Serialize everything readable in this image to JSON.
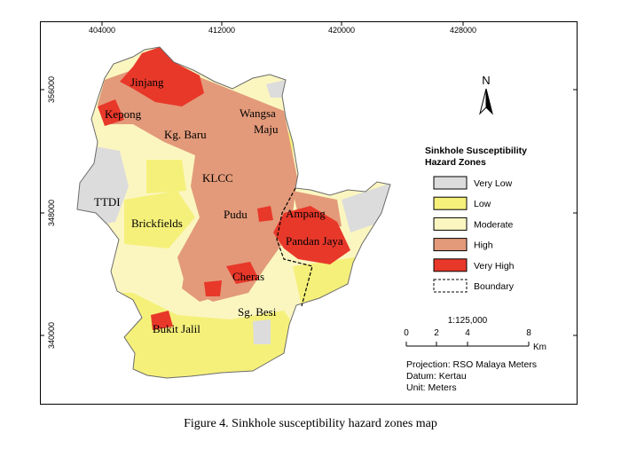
{
  "figure": {
    "caption": "Figure 4. Sinkhole susceptibility hazard zones map"
  },
  "axes": {
    "x_ticks": [
      "404000",
      "412000",
      "420000",
      "428000"
    ],
    "y_ticks": [
      "356000",
      "348000",
      "340000"
    ]
  },
  "places": [
    "Jinjang",
    "Kepong",
    "Wangsa",
    "Maju",
    "Kg. Baru",
    "KLCC",
    "TTDI",
    "Brickfields",
    "Pudu",
    "Ampang",
    "Pandan Jaya",
    "Cheras",
    "Sg. Besi",
    "Bukit Jalil"
  ],
  "north_arrow": {
    "label": "N"
  },
  "legend": {
    "title_line1": "Sinkhole Susceptibility",
    "title_line2": "Hazard Zones",
    "items": [
      {
        "label": "Very Low",
        "color": "#dcdcdc"
      },
      {
        "label": "Low",
        "color": "#f5f07a"
      },
      {
        "label": "Moderate",
        "color": "#fbf6c0"
      },
      {
        "label": "High",
        "color": "#e39a7a"
      },
      {
        "label": "Very High",
        "color": "#e8382a"
      },
      {
        "label": "Boundary",
        "color": "#ffffff"
      }
    ]
  },
  "scale": {
    "ratio": "1:125,000",
    "ticks": [
      "0",
      "2",
      "4",
      "8"
    ],
    "unit": "Km"
  },
  "info": {
    "projection": "Projection: RSO Malaya Meters",
    "datum": "Datum: Kertau",
    "unit": "Unit: Meters"
  }
}
